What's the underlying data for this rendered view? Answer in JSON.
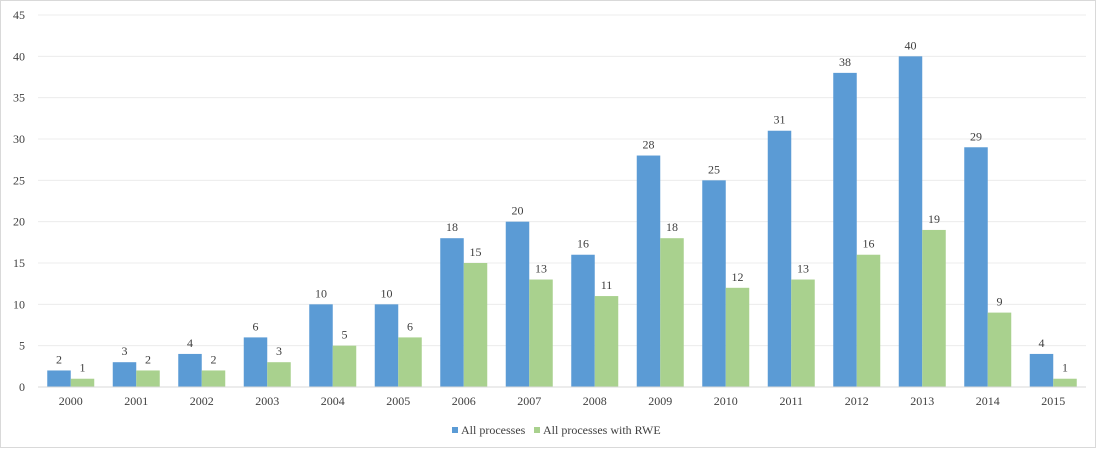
{
  "chart_data": {
    "type": "bar",
    "title": "",
    "xlabel": "",
    "ylabel": "",
    "categories": [
      "2000",
      "2001",
      "2002",
      "2003",
      "2004",
      "2005",
      "2006",
      "2007",
      "2008",
      "2009",
      "2010",
      "2011",
      "2012",
      "2013",
      "2014",
      "2015"
    ],
    "series": [
      {
        "name": "All processes",
        "color": "#5b9bd5",
        "values": [
          2,
          3,
          4,
          6,
          10,
          10,
          18,
          20,
          16,
          28,
          25,
          31,
          38,
          40,
          29,
          4
        ]
      },
      {
        "name": "All processes with RWE",
        "color": "#a9d18e",
        "values": [
          1,
          2,
          2,
          3,
          5,
          6,
          15,
          13,
          11,
          18,
          12,
          13,
          16,
          19,
          9,
          1
        ]
      }
    ],
    "ylim": [
      0,
      45
    ],
    "yticks": [
      0,
      5,
      10,
      15,
      20,
      25,
      30,
      35,
      40,
      45
    ],
    "grid": true,
    "data_labels": true,
    "legend": "bottom-center"
  }
}
